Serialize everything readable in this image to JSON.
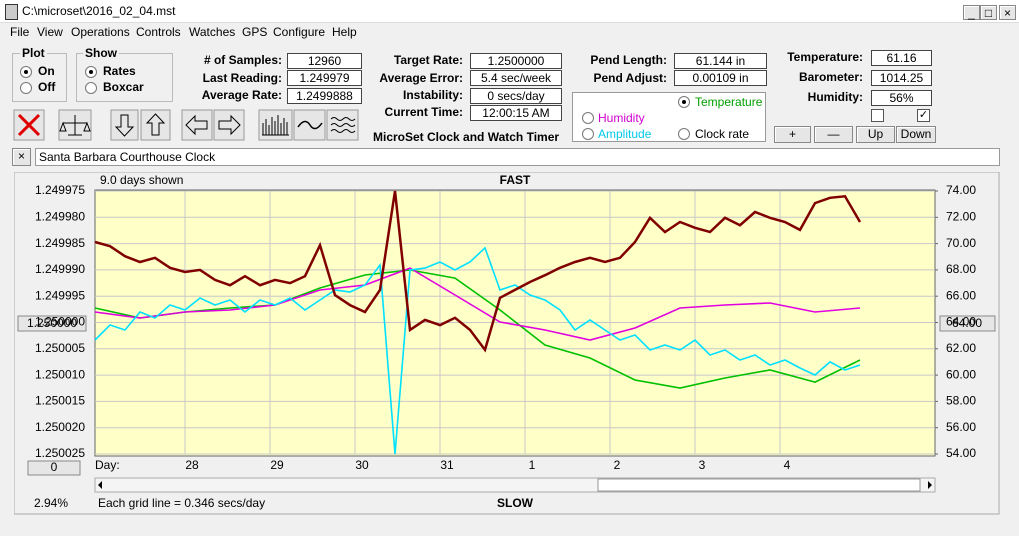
{
  "window_title": "C:\\microset\\2016_02_04.mst",
  "menu": [
    "File",
    "View",
    "Operations",
    "Controls",
    "Watches",
    "GPS",
    "Configure",
    "Help"
  ],
  "plot_group": {
    "title": "Plot",
    "options": [
      "On",
      "Off"
    ]
  },
  "show_group": {
    "title": "Show",
    "options": [
      "Rates",
      "Boxcar"
    ]
  },
  "stats": [
    {
      "label": "# of Samples:",
      "value": "12960"
    },
    {
      "label": "Last Reading:",
      "value": "1.249979"
    },
    {
      "label": "Average Rate:",
      "value": "1.2499888"
    },
    {
      "label": "Target Rate:",
      "value": "1.2500000"
    },
    {
      "label": "Average Error:",
      "value": "5.4 sec/week"
    },
    {
      "label": "Instability:",
      "value": "0 secs/day"
    },
    {
      "label": "Current Time:",
      "value": "12:00:15 AM"
    },
    {
      "label": "Pend Length:",
      "value": "61.144 in"
    },
    {
      "label": "Pend Adjust:",
      "value": "0.00109 in"
    },
    {
      "label": "Temperature:",
      "value": "61.16"
    },
    {
      "label": "Barometer:",
      "value": "1014.25"
    },
    {
      "label": "Humidity:",
      "value": "56%"
    }
  ],
  "app_title": "MicroSet Clock and Watch Timer",
  "radio_group": [
    "Temperature",
    "Humidity",
    "Amplitude",
    "Clock rate"
  ],
  "buttons": [
    "+",
    "—",
    "Up",
    "Down"
  ],
  "clock_name": "Santa Barbara Courthouse Clock",
  "chart_data": {
    "type": "line",
    "days_shown": "9.0 days shown",
    "top_label": "FAST",
    "bottom_label": "SLOW",
    "grid_note": "Each grid line = 0.346 secs/day",
    "percent": "2.94%",
    "left_readout": "1.250000",
    "right_readout": "64.00",
    "zero_button": "0",
    "x_label": "Day:",
    "day_labels": [
      "28",
      "29",
      "30",
      "31",
      "1",
      "2",
      "3",
      "4"
    ],
    "ylim": [
      1.250025,
      1.249975
    ],
    "yticks": [
      1.249975,
      {
        "value": 1.24998,
        "label": "1.249980"
      },
      1.249985,
      {
        "value": 1.24999,
        "label": "1.249990"
      },
      1.249995,
      {
        "value": 1.25,
        "label": "1.250000"
      },
      1.250005,
      {
        "value": 1.25001,
        "label": "1.250010"
      },
      1.250015,
      {
        "value": 1.25002,
        "label": "1.250020"
      },
      1.250025
    ],
    "y2lim": [
      54,
      74
    ],
    "y2ticks": [
      {
        "value": 74,
        "label": "74.00"
      },
      {
        "value": 72,
        "label": "72.00"
      },
      {
        "value": 70,
        "label": "70.00"
      },
      {
        "value": 68,
        "label": "68.00"
      },
      {
        "value": 66,
        "label": "66.00"
      },
      {
        "value": 64,
        "label": "64.00"
      },
      {
        "value": 62,
        "label": "62.00"
      },
      {
        "value": 60,
        "label": "60.00"
      },
      {
        "value": 58,
        "label": "58.00"
      },
      {
        "value": 56,
        "label": "56.00"
      },
      {
        "value": 54,
        "label": "54.00"
      }
    ],
    "grid": true,
    "series": [
      {
        "color": "#800000",
        "values": [
          1.2499847,
          1.2499855,
          1.2499874,
          1.2499885,
          1.2499877,
          1.2499896,
          1.2499904,
          1.24999,
          1.2499919,
          1.2499929,
          1.2499912,
          1.2499929,
          1.2499919,
          1.2499925,
          1.2499912,
          1.2499853,
          1.2499948,
          1.2499967,
          1.249998,
          1.2499938,
          1.249975,
          1.2500014,
          1.2499995,
          1.2500005,
          1.2499991,
          1.2500014,
          1.2500052,
          1.2499953,
          1.2499938,
          1.2499923,
          1.249991,
          1.2499896,
          1.2499885,
          1.2499877,
          1.2499885,
          1.2499877,
          1.2499847,
          1.2499801,
          1.2499828,
          1.2499809,
          1.249982,
          1.2499828,
          1.2499801,
          1.2499815,
          1.249979,
          1.2499801,
          1.2499809,
          1.2499824,
          1.2499773,
          1.2499763,
          1.249976,
          1.2499809
        ]
      },
      {
        "color": "#00c000",
        "axis": "y2",
        "values": [
          65.1,
          64.34,
          64.8,
          65.1,
          65.33,
          66.62,
          67.61,
          67.99,
          67.38,
          64.95,
          62.29,
          61.3,
          59.63,
          59.02,
          59.78,
          60.39,
          59.47,
          61.15
        ]
      },
      {
        "color": "#e000e0",
        "axis": "y2",
        "values": [
          64.8,
          64.34,
          64.8,
          64.95,
          65.33,
          66.47,
          66.85,
          68.14,
          66.09,
          64.04,
          63.43,
          62.67,
          63.58,
          65.1,
          65.33,
          65.48,
          64.8,
          65.1
        ]
      },
      {
        "color": "#00e0ff",
        "axis": "y2",
        "values": [
          62.67,
          63.81,
          63.43,
          64.8,
          64.34,
          65.33,
          64.95,
          65.86,
          65.33,
          65.71,
          64.8,
          65.71,
          65.33,
          65.86,
          64.95,
          65.71,
          66.47,
          66.32,
          66.85,
          68.37,
          54,
          67.99,
          68.14,
          68.6,
          67.99,
          68.6,
          69.67,
          66.47,
          66.85,
          66.09,
          65.71,
          64.95,
          63.43,
          64.19,
          63.43,
          62.67,
          63.05,
          61.91,
          62.29,
          61.91,
          62.67,
          61.53,
          61.91,
          61.15,
          61.53,
          60.77,
          61.15,
          60.54,
          60.01,
          61.0,
          60.39,
          60.77
        ]
      }
    ]
  }
}
